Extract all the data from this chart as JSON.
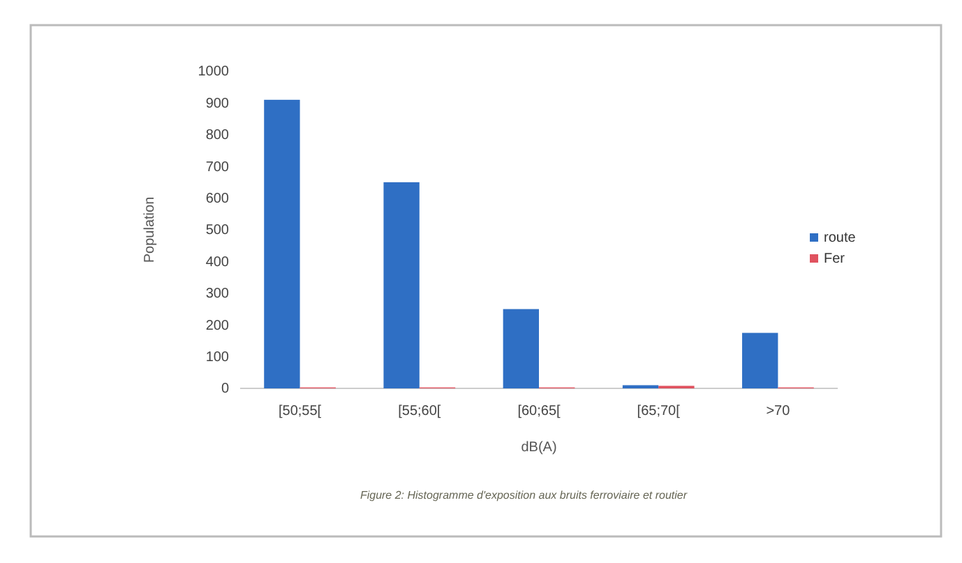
{
  "chart_data": {
    "type": "bar",
    "xlabel": "dB(A)",
    "ylabel": "Population",
    "categories": [
      "[50;55[",
      "[55;60[",
      "[60;65[",
      "[65;70[",
      ">70"
    ],
    "series": [
      {
        "name": "route",
        "color": "#2f6fc4",
        "values": [
          910,
          650,
          250,
          10,
          175
        ]
      },
      {
        "name": "Fer",
        "color": "#e0525f",
        "values": [
          3,
          3,
          3,
          8,
          3
        ]
      }
    ],
    "ylim": [
      0,
      1000
    ],
    "yticks": [
      0,
      100,
      200,
      300,
      400,
      500,
      600,
      700,
      800,
      900,
      1000
    ],
    "grid": false,
    "legend": "right",
    "annotations": [
      "Figure 2: Histogramme d'exposition aux bruits ferroviaire et routier"
    ]
  }
}
